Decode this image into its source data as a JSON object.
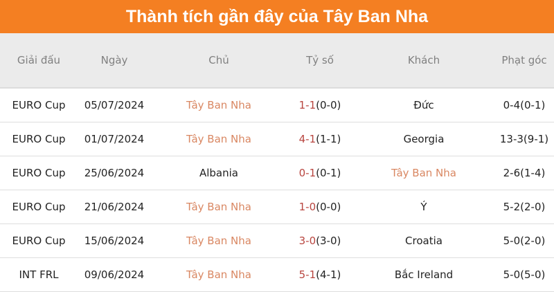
{
  "title": "Thành tích gần đây của Tây Ban Nha",
  "colors": {
    "header_bg": "#f47f22",
    "highlight_team": "#d98762",
    "score": "#b8453f"
  },
  "headers": [
    "Giải đấu",
    "Ngày",
    "Chủ",
    "Tỷ số",
    "Khách",
    "Phạt góc"
  ],
  "rows": [
    {
      "league": "EURO Cup",
      "date": "05/07/2024",
      "home": "Tây Ban Nha",
      "score": "1-1",
      "half": "(0-0)",
      "away": "Đức",
      "corners": "0-4(0-1)",
      "highlight": "home"
    },
    {
      "league": "EURO Cup",
      "date": "01/07/2024",
      "home": "Tây Ban Nha",
      "score": "4-1",
      "half": "(1-1)",
      "away": "Georgia",
      "corners": "13-3(9-1)",
      "highlight": "home"
    },
    {
      "league": "EURO Cup",
      "date": "25/06/2024",
      "home": "Albania",
      "score": "0-1",
      "half": "(0-1)",
      "away": "Tây Ban Nha",
      "corners": "2-6(1-4)",
      "highlight": "away"
    },
    {
      "league": "EURO Cup",
      "date": "21/06/2024",
      "home": "Tây Ban Nha",
      "score": "1-0",
      "half": "(0-0)",
      "away": "Ý",
      "corners": "5-2(2-0)",
      "highlight": "home"
    },
    {
      "league": "EURO Cup",
      "date": "15/06/2024",
      "home": "Tây Ban Nha",
      "score": "3-0",
      "half": "(3-0)",
      "away": "Croatia",
      "corners": "5-0(2-0)",
      "highlight": "home"
    },
    {
      "league": "INT FRL",
      "date": "09/06/2024",
      "home": "Tây Ban Nha",
      "score": "5-1",
      "half": "(4-1)",
      "away": "Bắc Ireland",
      "corners": "5-0(5-0)",
      "highlight": "home"
    }
  ]
}
